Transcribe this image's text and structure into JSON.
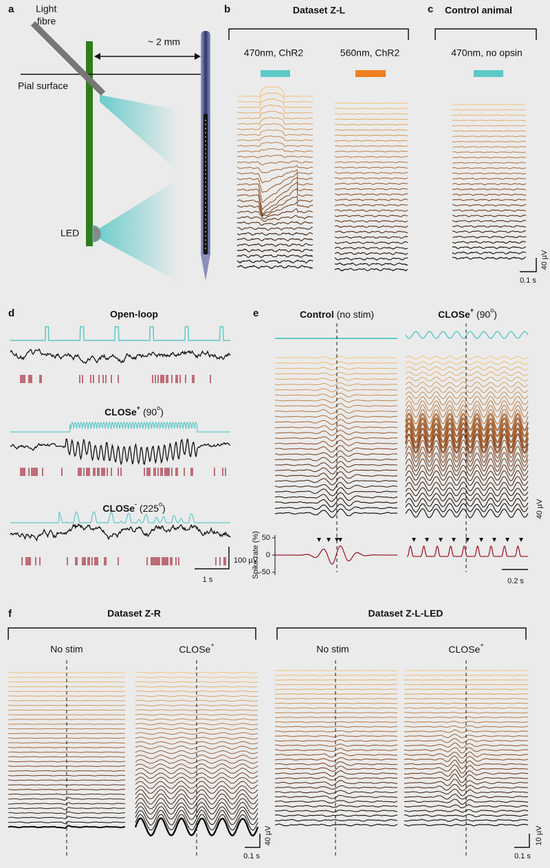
{
  "panel_a": {
    "letter": "a",
    "light_fibre": [
      "Light",
      "fibre"
    ],
    "distance": "~ 2 mm",
    "pial_surface": "Pial surface",
    "led": "LED"
  },
  "panel_b": {
    "letter": "b",
    "title": "Dataset Z-L",
    "conditions": [
      "470nm, ChR2",
      "560nm, ChR2"
    ]
  },
  "panel_c": {
    "letter": "c",
    "title": "Control animal",
    "condition": "470nm, no opsin",
    "scale_x": "0.1 s",
    "scale_y": "40 µV"
  },
  "panel_d": {
    "letter": "d",
    "open_loop": "Open-loop",
    "close_plus": [
      "CLOSe",
      "+",
      " (90",
      "o",
      ")"
    ],
    "close_minus": [
      "CLOSe",
      "-",
      " (225",
      "o",
      ")"
    ],
    "scale_y": "100 µV",
    "scale_x": "1 s"
  },
  "panel_e": {
    "letter": "e",
    "control": [
      "Control",
      " (no stim)"
    ],
    "close_plus": [
      "CLOSe",
      "+",
      " (90",
      "o",
      ")"
    ],
    "scale_y": "40 µV",
    "spike_rate_label": "Spike rate (%)",
    "spike_yticks": [
      50,
      0,
      -50
    ],
    "scale_x": "0.2 s"
  },
  "panel_f": {
    "letter": "f",
    "datasets": [
      {
        "title": "Dataset Z-R",
        "no_stim": "No stim",
        "close": [
          "CLOSe",
          "+"
        ],
        "scale_x": "0.1 s",
        "scale_y": "40 µV"
      },
      {
        "title": "Dataset Z-L-LED",
        "no_stim": "No stim",
        "close": [
          "CLOSe",
          "+"
        ],
        "scale_x": "0.1 s",
        "scale_y": "10 µV"
      }
    ]
  }
}
